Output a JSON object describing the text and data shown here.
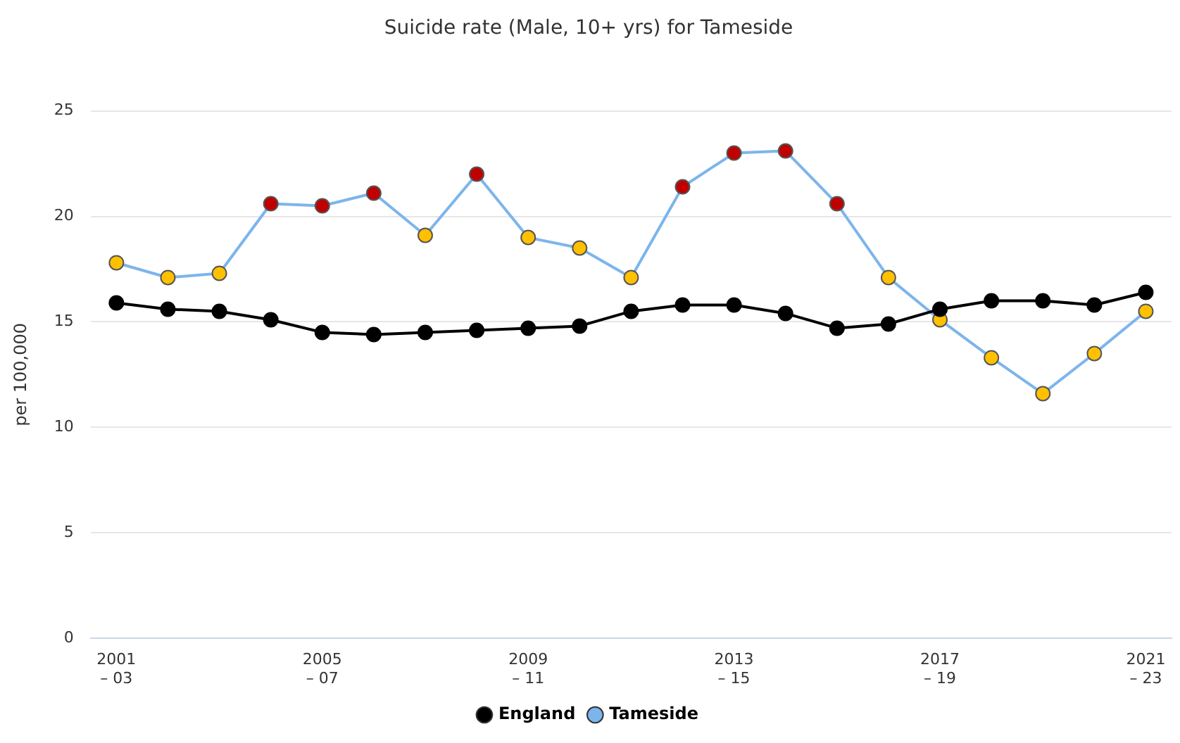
{
  "chart_data": {
    "type": "line",
    "title": "Suicide rate (Male, 10+ yrs) for Tameside",
    "ylabel": "per 100,000",
    "categories": [
      "2001\n– 03",
      null,
      null,
      null,
      "2005\n– 07",
      null,
      null,
      null,
      "2009\n– 11",
      null,
      null,
      null,
      "2013\n– 15",
      null,
      null,
      null,
      "2017\n– 19",
      null,
      null,
      null,
      "2021\n– 23"
    ],
    "series": [
      {
        "name": "England",
        "color": "#000000",
        "values": [
          15.9,
          15.6,
          15.5,
          15.1,
          14.5,
          14.4,
          14.5,
          14.6,
          14.7,
          14.8,
          15.5,
          15.8,
          15.8,
          15.4,
          14.7,
          14.9,
          15.6,
          16.0,
          16.0,
          15.8,
          16.4
        ]
      },
      {
        "name": "Tameside",
        "color": "#7cb5ec",
        "colors": [
          "#ffc000",
          "#ffc000",
          "#ffc000",
          "#c00000",
          "#c00000",
          "#c00000",
          "#ffc000",
          "#c00000",
          "#ffc000",
          "#ffc000",
          "#ffc000",
          "#c00000",
          "#c00000",
          "#c00000",
          "#c00000",
          "#ffc000",
          "#ffc000",
          "#ffc000",
          "#ffc000",
          "#ffc000",
          "#ffc000"
        ],
        "values": [
          17.8,
          17.1,
          17.3,
          20.6,
          20.5,
          21.1,
          19.1,
          22.0,
          19.0,
          18.5,
          17.1,
          21.4,
          23.0,
          23.1,
          20.6,
          17.1,
          15.1,
          13.3,
          11.6,
          13.5,
          15.5
        ]
      }
    ],
    "ylim": [
      0,
      25
    ],
    "yticks": [
      0,
      5,
      10,
      15,
      20,
      25
    ],
    "grid": "y",
    "legend": "bottom",
    "marker": "circle",
    "line_style": "solid"
  }
}
